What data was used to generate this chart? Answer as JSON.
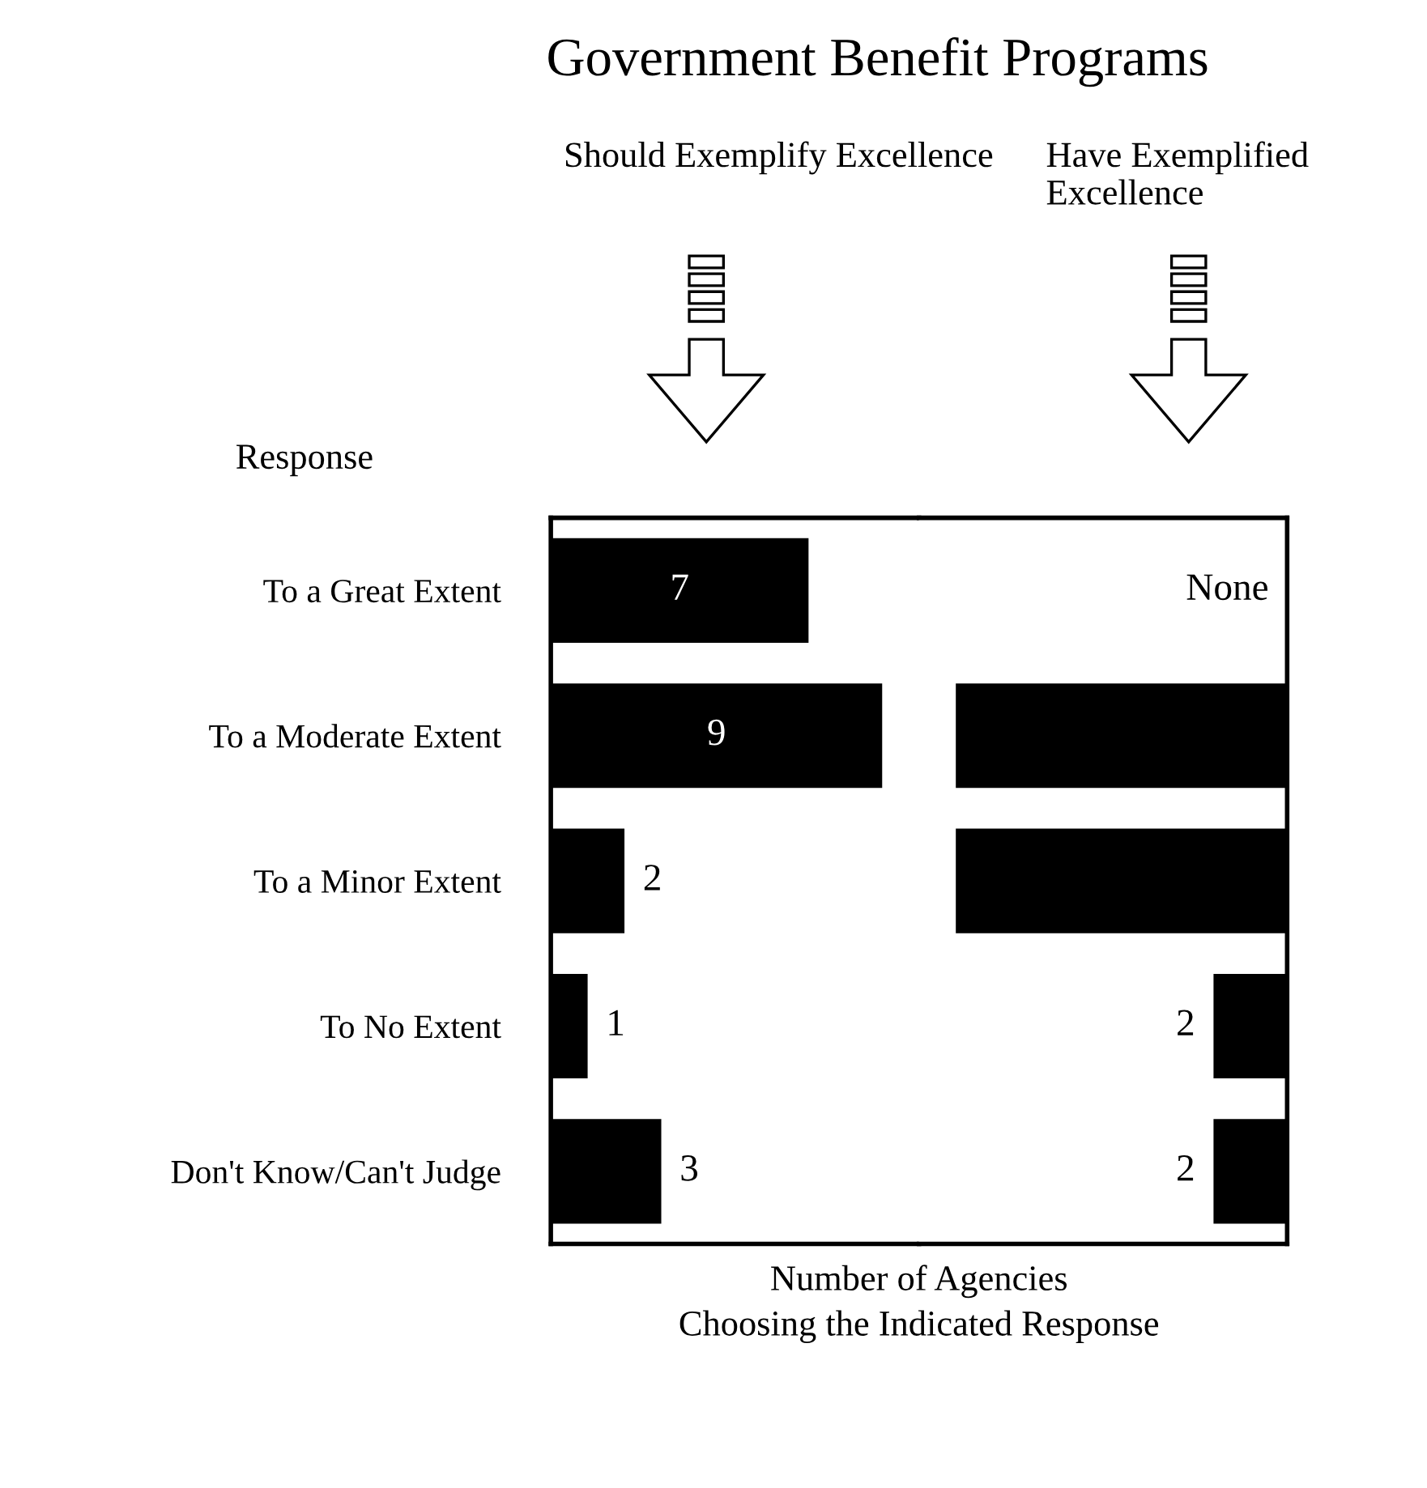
{
  "chart_data": [
    {
      "type": "bar",
      "orientation": "horizontal",
      "title": "Government Benefit Programs",
      "subtitle": "Should Exemplify Excellence",
      "ylabel": "Response",
      "xlabel": "Number of Agencies\nChoosing the Indicated Response",
      "categories": [
        "To a Great Extent",
        "To a Moderate Extent",
        "To a Minor Extent",
        "To No Extent",
        "Don't Know/Can't Judge"
      ],
      "series": [
        {
          "color": "#000000",
          "values": [
            7,
            9,
            2,
            1,
            3
          ],
          "value_labels": [
            "7",
            "9",
            "2",
            "1",
            "3"
          ]
        }
      ],
      "xlim": [
        0,
        10
      ],
      "tick_labels": "y",
      "grid": false
    },
    {
      "type": "bar",
      "orientation": "horizontal",
      "subtitle": "Have Exemplified Excellence",
      "categories": [
        null,
        null,
        null,
        null,
        null
      ],
      "series": [
        {
          "color": "#000000",
          "values": [
            0,
            9,
            9,
            2,
            2
          ],
          "value_labels": [
            "None",
            null,
            null,
            "2",
            "2"
          ]
        }
      ],
      "xlim": [
        10,
        0
      ],
      "tick_labels": false,
      "grid": false
    }
  ]
}
